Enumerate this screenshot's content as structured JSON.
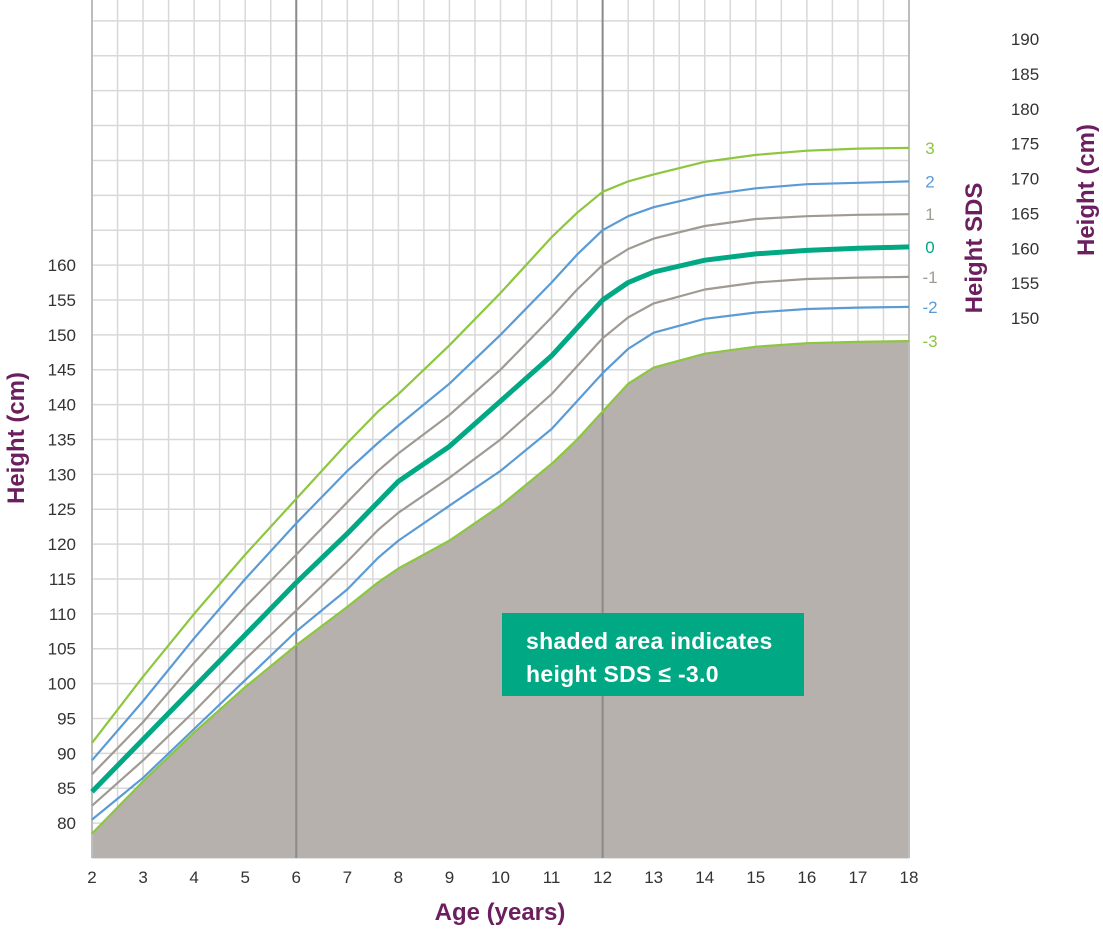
{
  "chart_data": {
    "type": "line",
    "xlabel": "Age (years)",
    "ylabel": "Height (cm)",
    "right_axis_labels": [
      "Height SDS",
      "Height (cm)"
    ],
    "xlim": [
      2,
      18
    ],
    "ylim": [
      75,
      198
    ],
    "x_ticks": [
      "2",
      "3",
      "4",
      "5",
      "6",
      "7",
      "8",
      "9",
      "10",
      "11",
      "12",
      "13",
      "14",
      "15",
      "16",
      "17",
      "18"
    ],
    "y_ticks_left": [
      "80",
      "85",
      "90",
      "95",
      "100",
      "105",
      "110",
      "115",
      "120",
      "125",
      "130",
      "135",
      "140",
      "145",
      "150",
      "155",
      "160"
    ],
    "y_ticks_right": [
      "150",
      "155",
      "160",
      "165",
      "170",
      "175",
      "180",
      "185",
      "190"
    ],
    "grid": true,
    "annotation": [
      "shaded area indicates",
      "height SDS ≤ -3.0"
    ],
    "colors": {
      "sds_3": "#8dc63f",
      "sds_2": "#5b9bd5",
      "sds_1": "#a09a94",
      "sds_0": "#00a884",
      "shade": "#b7b1ad",
      "axis_title": "#6b1f5f",
      "annotation_bg": "#00a884"
    },
    "series": [
      {
        "name": "3",
        "color": "#8dc63f",
        "x": [
          2,
          3,
          4,
          5,
          6,
          7,
          7.6,
          8,
          9,
          10,
          11,
          11.5,
          12,
          12.5,
          13,
          14,
          15,
          16,
          17,
          18
        ],
        "y": [
          91.5,
          101,
          110,
          118.5,
          126.5,
          134.5,
          139,
          141.5,
          148.5,
          156,
          164,
          167.5,
          170.5,
          172,
          173,
          174.8,
          175.8,
          176.4,
          176.7,
          176.8
        ]
      },
      {
        "name": "2",
        "color": "#5b9bd5",
        "x": [
          2,
          3,
          4,
          5,
          6,
          7,
          7.6,
          8,
          9,
          10,
          11,
          11.5,
          12,
          12.5,
          13,
          14,
          15,
          16,
          17,
          18
        ],
        "y": [
          89,
          97.5,
          106.5,
          115,
          123,
          130.5,
          134.5,
          137,
          143,
          150,
          157.5,
          161.5,
          165,
          167,
          168.3,
          170,
          171,
          171.6,
          171.8,
          172
        ]
      },
      {
        "name": "1",
        "color": "#a09a94",
        "x": [
          2,
          3,
          4,
          5,
          6,
          7,
          7.6,
          8,
          9,
          10,
          11,
          11.5,
          12,
          12.5,
          13,
          14,
          15,
          16,
          17,
          18
        ],
        "y": [
          87,
          94.5,
          103,
          111,
          118.5,
          126,
          130.5,
          133,
          138.5,
          145,
          152.5,
          156.5,
          160,
          162.3,
          163.8,
          165.6,
          166.6,
          167,
          167.2,
          167.3
        ]
      },
      {
        "name": "0",
        "color": "#00a884",
        "x": [
          2,
          3,
          4,
          5,
          6,
          7,
          7.6,
          8,
          9,
          10,
          11,
          11.5,
          12,
          12.5,
          13,
          14,
          15,
          16,
          17,
          18
        ],
        "y": [
          84.5,
          92,
          99.5,
          107,
          114.5,
          121.5,
          126,
          129,
          134,
          140.5,
          147,
          151,
          155,
          157.5,
          159,
          160.7,
          161.6,
          162.1,
          162.4,
          162.6
        ]
      },
      {
        "name": "-1",
        "color": "#a09a94",
        "x": [
          2,
          3,
          4,
          5,
          6,
          7,
          7.6,
          8,
          9,
          10,
          11,
          11.5,
          12,
          12.5,
          13,
          14,
          15,
          16,
          17,
          18
        ],
        "y": [
          82.5,
          89,
          96,
          103.5,
          110.5,
          117.5,
          122,
          124.5,
          129.5,
          135,
          141.5,
          145.5,
          149.5,
          152.5,
          154.5,
          156.5,
          157.5,
          158,
          158.2,
          158.3
        ]
      },
      {
        "name": "-2",
        "color": "#5b9bd5",
        "x": [
          2,
          3,
          4,
          5,
          6,
          7,
          7.6,
          8,
          9,
          10,
          11,
          11.5,
          12,
          12.5,
          13,
          14,
          15,
          16,
          17,
          18
        ],
        "y": [
          80.5,
          86.5,
          93.5,
          100.5,
          107.5,
          113.5,
          118,
          120.5,
          125.5,
          130.5,
          136.5,
          140.5,
          144.5,
          148,
          150.3,
          152.3,
          153.2,
          153.7,
          153.9,
          154
        ]
      },
      {
        "name": "-3",
        "color": "#8dc63f",
        "x": [
          2,
          3,
          4,
          5,
          6,
          7,
          7.6,
          8,
          9,
          10,
          11,
          11.5,
          12,
          12.5,
          13,
          14,
          15,
          16,
          17,
          18
        ],
        "y": [
          78.5,
          86,
          93,
          99.5,
          105.5,
          111,
          114.5,
          116.5,
          120.5,
          125.5,
          131.5,
          135,
          139,
          143,
          145.3,
          147.3,
          148.3,
          148.8,
          149,
          149.1
        ]
      }
    ]
  }
}
